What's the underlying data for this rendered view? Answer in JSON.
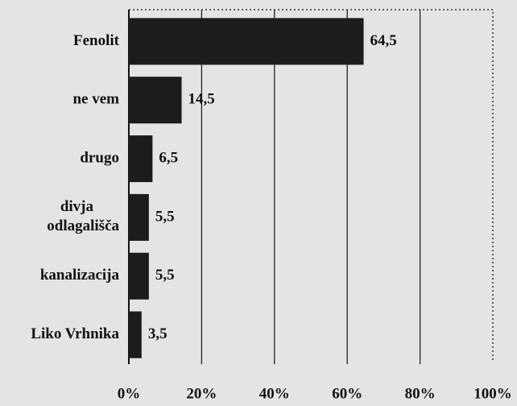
{
  "chart_data": {
    "type": "bar",
    "orientation": "horizontal",
    "categories": [
      "Fenolit",
      "ne vem",
      "drugo",
      "divja odlagališča",
      "kanalizacija",
      "Liko Vrhnika"
    ],
    "values": [
      64.5,
      14.5,
      6.5,
      5.5,
      5.5,
      3.5
    ],
    "value_labels": [
      "64,5",
      "14,5",
      "6,5",
      "5,5",
      "5,5",
      "3,5"
    ],
    "color": "#1c1c1c",
    "xlim": [
      0,
      100
    ],
    "xticks": [
      {
        "value": 0,
        "label": "0%"
      },
      {
        "value": 20,
        "label": "20%"
      },
      {
        "value": 40,
        "label": "40%"
      },
      {
        "value": 60,
        "label": "60%"
      },
      {
        "value": 80,
        "label": "80%"
      },
      {
        "value": 100,
        "label": "100%"
      }
    ],
    "grid": true
  }
}
